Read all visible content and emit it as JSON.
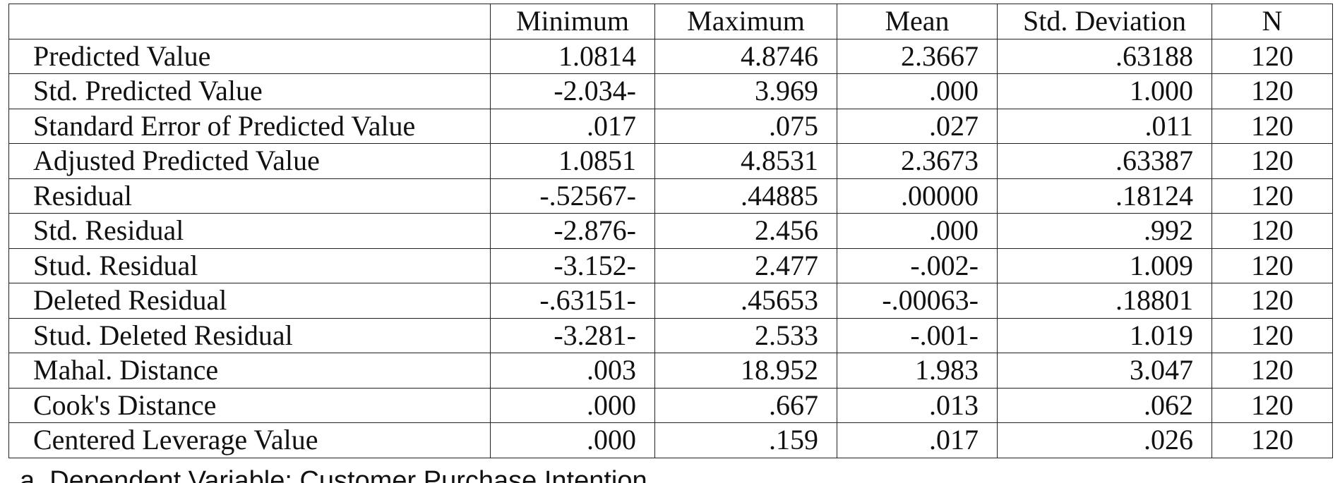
{
  "table": {
    "headers": [
      "",
      "Minimum",
      "Maximum",
      "Mean",
      "Std. Deviation",
      "N"
    ],
    "rows": [
      {
        "label": "Predicted Value",
        "min": "1.0814",
        "max": "4.8746",
        "mean": "2.3667",
        "sd": ".63188",
        "n": "120"
      },
      {
        "label": "Std. Predicted Value",
        "min": "-2.034-",
        "max": "3.969",
        "mean": ".000",
        "sd": "1.000",
        "n": "120"
      },
      {
        "label": "Standard Error of Predicted Value",
        "min": ".017",
        "max": ".075",
        "mean": ".027",
        "sd": ".011",
        "n": "120"
      },
      {
        "label": "Adjusted Predicted Value",
        "min": "1.0851",
        "max": "4.8531",
        "mean": "2.3673",
        "sd": ".63387",
        "n": "120"
      },
      {
        "label": "Residual",
        "min": "-.52567-",
        "max": ".44885",
        "mean": ".00000",
        "sd": ".18124",
        "n": "120"
      },
      {
        "label": "Std. Residual",
        "min": "-2.876-",
        "max": "2.456",
        "mean": ".000",
        "sd": ".992",
        "n": "120"
      },
      {
        "label": "Stud. Residual",
        "min": "-3.152-",
        "max": "2.477",
        "mean": "-.002-",
        "sd": "1.009",
        "n": "120"
      },
      {
        "label": "Deleted Residual",
        "min": "-.63151-",
        "max": ".45653",
        "mean": "-.00063-",
        "sd": ".18801",
        "n": "120"
      },
      {
        "label": "Stud. Deleted Residual",
        "min": "-3.281-",
        "max": "2.533",
        "mean": "-.001-",
        "sd": "1.019",
        "n": "120"
      },
      {
        "label": "Mahal. Distance",
        "min": ".003",
        "max": "18.952",
        "mean": "1.983",
        "sd": "3.047",
        "n": "120"
      },
      {
        "label": "Cook's Distance",
        "min": ".000",
        "max": ".667",
        "mean": ".013",
        "sd": ".062",
        "n": "120"
      },
      {
        "label": "Centered Leverage Value",
        "min": ".000",
        "max": ".159",
        "mean": ".017",
        "sd": ".026",
        "n": "120"
      }
    ]
  },
  "footnote": "a. Dependent Variable: Customer Purchase Intention"
}
